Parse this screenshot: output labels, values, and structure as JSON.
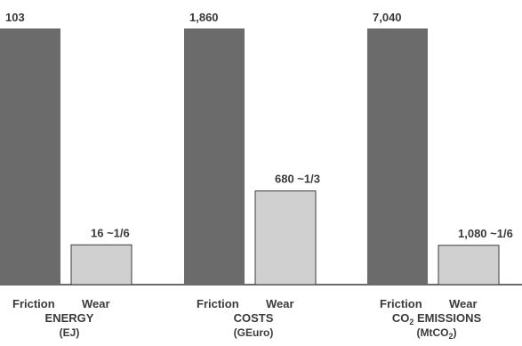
{
  "chart_data": {
    "type": "bar",
    "series_names": [
      "Friction",
      "Wear"
    ],
    "colors": {
      "friction": "#6b6b6b",
      "wear": "#d0d0d0",
      "axis": "#3a3a3a",
      "text": "#3a3a3a"
    },
    "panels": [
      {
        "group": "ENERGY",
        "unit": "(EJ)",
        "friction": {
          "value": 103,
          "label": "103"
        },
        "wear": {
          "value": 16,
          "label": "16 ~1/6"
        }
      },
      {
        "group": "COSTS",
        "unit": "(GEuro)",
        "friction": {
          "value": 1860,
          "label": "1,860"
        },
        "wear": {
          "value": 680,
          "label": "680 ~1/3"
        }
      },
      {
        "group": "CO2 EMISSIONS",
        "group_main": "CO",
        "group_sub": "2",
        "group_rest": " EMISSIONS",
        "unit": "(MtCO2)",
        "unit_main": "(MtCO",
        "unit_sub": "2",
        "unit_rest": ")",
        "friction": {
          "value": 7040,
          "label": "7,040"
        },
        "wear": {
          "value": 1080,
          "label": "1,080 ~1/6"
        }
      }
    ]
  }
}
